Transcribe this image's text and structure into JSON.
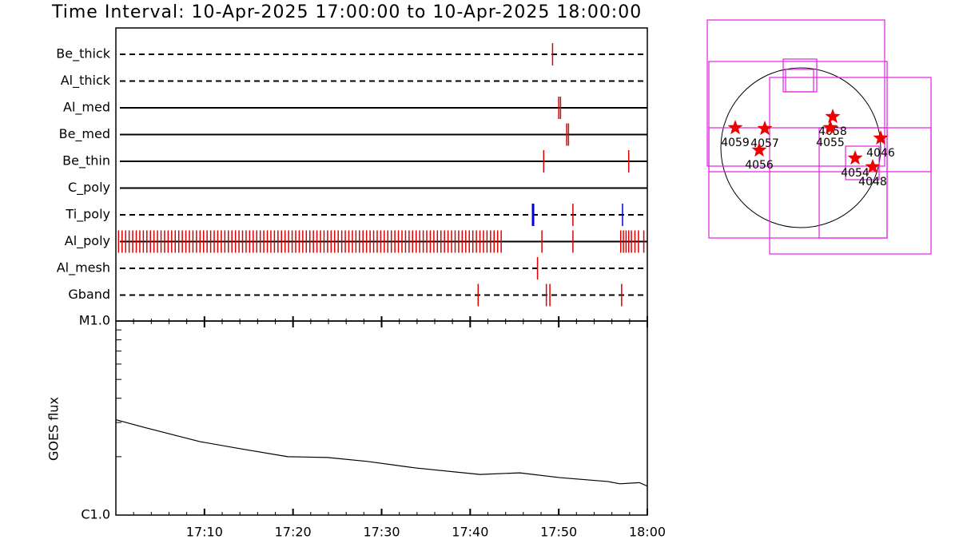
{
  "chart_data": [
    {
      "type": "timeline",
      "title": "Time Interval: 10-Apr-2025 17:00:00 to 10-Apr-2025 18:00:00",
      "xlim": [
        0,
        60
      ],
      "rows": [
        {
          "name": "Be_thick",
          "line": "dashed",
          "marks": [
            {
              "color": "#dd0000",
              "values": [
                49.3
              ]
            }
          ]
        },
        {
          "name": "Al_thick",
          "line": "dashed",
          "marks": []
        },
        {
          "name": "Al_med",
          "line": "solid",
          "marks": [
            {
              "color": "#dd0000",
              "values": [
                50.0,
                50.2
              ]
            }
          ]
        },
        {
          "name": "Be_med",
          "line": "solid",
          "marks": [
            {
              "color": "#dd0000",
              "values": [
                50.9,
                51.1
              ]
            }
          ]
        },
        {
          "name": "Be_thin",
          "line": "solid",
          "marks": [
            {
              "color": "#dd0000",
              "values": [
                48.3,
                57.9
              ]
            }
          ]
        },
        {
          "name": "C_poly",
          "line": "solid",
          "marks": []
        },
        {
          "name": "Ti_poly",
          "line": "dashed",
          "marks": [
            {
              "color": "#dd0000",
              "values": [
                51.6
              ]
            },
            {
              "color": "#0000dd",
              "values": [
                47.1,
                57.2
              ]
            }
          ]
        },
        {
          "name": "Al_poly",
          "line": "solid",
          "marks": [
            {
              "color": "#dd0000",
              "values": [
                0.3,
                0.7,
                1.1,
                1.5,
                1.9,
                2.3,
                2.7,
                3.1,
                3.5,
                3.9,
                4.3,
                4.7,
                5.1,
                5.5,
                5.9,
                6.3,
                6.7,
                7.1,
                7.5,
                7.9,
                8.3,
                8.7,
                9.1,
                9.5,
                9.9,
                10.3,
                10.7,
                11.1,
                11.5,
                11.9,
                12.3,
                12.7,
                13.1,
                13.5,
                13.9,
                14.3,
                14.7,
                15.1,
                15.5,
                15.9,
                16.3,
                16.7,
                17.1,
                17.5,
                17.9,
                18.3,
                18.7,
                19.1,
                19.5,
                19.9,
                20.3,
                20.7,
                21.1,
                21.5,
                21.9,
                22.3,
                22.7,
                23.1,
                23.5,
                23.9,
                24.3,
                24.7,
                25.1,
                25.5,
                25.9,
                26.3,
                26.7,
                27.1,
                27.5,
                27.9,
                28.3,
                28.7,
                29.1,
                29.5,
                29.9,
                30.3,
                30.7,
                31.1,
                31.5,
                31.9,
                32.3,
                32.7,
                33.1,
                33.5,
                33.9,
                34.3,
                34.7,
                35.1,
                35.5,
                35.9,
                36.3,
                36.7,
                37.1,
                37.5,
                37.9,
                38.3,
                38.7,
                39.1,
                39.5,
                39.9,
                40.3,
                40.7,
                41.1,
                41.5,
                41.9,
                42.3,
                42.7,
                43.1,
                43.5,
                48.1,
                51.6,
                57.0,
                57.3,
                57.6,
                57.9,
                58.2,
                58.6,
                59.0,
                59.6
              ]
            }
          ]
        },
        {
          "name": "Al_mesh",
          "line": "dashed",
          "marks": [
            {
              "color": "#dd0000",
              "values": [
                47.6
              ]
            }
          ]
        },
        {
          "name": "Gband",
          "line": "dashed",
          "marks": [
            {
              "color": "#dd0000",
              "values": [
                40.9,
                48.6,
                49.0,
                57.1
              ]
            }
          ]
        }
      ]
    },
    {
      "type": "line",
      "ylabel": "GOES flux",
      "log": true,
      "ylim": [
        1e-06,
        1e-05
      ],
      "yticks": [
        {
          "value": 1e-06,
          "label": "C1.0"
        },
        {
          "value": 1e-05,
          "label": "M1.0"
        }
      ],
      "yminor": [
        2e-06,
        3e-06,
        4e-06,
        5e-06,
        6e-06,
        7e-06,
        8e-06,
        9e-06
      ],
      "xlim": [
        0,
        60
      ],
      "xticks": [
        {
          "value": 10,
          "label": "17:10"
        },
        {
          "value": 20,
          "label": "17:20"
        },
        {
          "value": 30,
          "label": "17:30"
        },
        {
          "value": 40,
          "label": "17:40"
        },
        {
          "value": 50,
          "label": "17:50"
        },
        {
          "value": 60,
          "label": "18:00"
        }
      ],
      "xminor": [
        2,
        4,
        6,
        8,
        12,
        14,
        16,
        18,
        22,
        24,
        26,
        28,
        32,
        34,
        36,
        38,
        42,
        44,
        46,
        48,
        52,
        54,
        56,
        58
      ],
      "color": "#000000",
      "x": [
        0,
        3.2,
        9.5,
        14,
        19.4,
        23.9,
        28.4,
        33.8,
        41.1,
        45.6,
        50.1,
        55.5,
        56.9,
        59.1,
        60
      ],
      "values": [
        3.1e-06,
        2.83e-06,
        2.39e-06,
        2.2e-06,
        2e-06,
        1.98e-06,
        1.89e-06,
        1.75e-06,
        1.62e-06,
        1.65e-06,
        1.56e-06,
        1.49e-06,
        1.45e-06,
        1.47e-06,
        1.41e-06
      ]
    },
    {
      "type": "map",
      "sun_radius": 960,
      "box_color": "#e020e0",
      "point_color": "#ee0000",
      "boxes": [
        [
          -1104,
          -1085,
          1037,
          1037
        ],
        [
          -374,
          -1277,
          1565,
          845
        ],
        [
          -1123,
          -221,
          1008,
          1536
        ],
        [
          -211,
          672,
          192,
          1066
        ],
        [
          -182,
          672,
          154,
          941
        ],
        [
          -1104,
          -288,
          1565,
          240
        ],
        [
          221,
          -1085,
          1037,
          240
        ],
        [
          538,
          -384,
          941,
          19
        ]
      ],
      "points": [
        {
          "name": "4059",
          "x": -787,
          "y": 240
        },
        {
          "name": "4057",
          "x": -432,
          "y": 230
        },
        {
          "name": "4056",
          "x": -499,
          "y": -29
        },
        {
          "name": "4058",
          "x": 384,
          "y": 374
        },
        {
          "name": "4055",
          "x": 355,
          "y": 240
        },
        {
          "name": "4046",
          "x": 960,
          "y": 115
        },
        {
          "name": "4054",
          "x": 653,
          "y": -125
        },
        {
          "name": "4048",
          "x": 864,
          "y": -230
        }
      ]
    }
  ]
}
